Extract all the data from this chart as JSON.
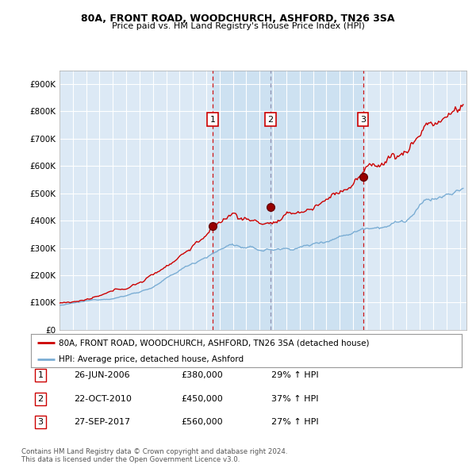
{
  "title1": "80A, FRONT ROAD, WOODCHURCH, ASHFORD, TN26 3SA",
  "title2": "Price paid vs. HM Land Registry's House Price Index (HPI)",
  "xlim_start": 1995.0,
  "xlim_end": 2025.5,
  "ylim_min": 0,
  "ylim_max": 950000,
  "yticks": [
    0,
    100000,
    200000,
    300000,
    400000,
    500000,
    600000,
    700000,
    800000,
    900000
  ],
  "ytick_labels": [
    "£0",
    "£100K",
    "£200K",
    "£300K",
    "£400K",
    "£500K",
    "£600K",
    "£700K",
    "£800K",
    "£900K"
  ],
  "sale_dates": [
    2006.484,
    2010.812,
    2017.745
  ],
  "sale_prices": [
    380000,
    450000,
    560000
  ],
  "sale_labels": [
    "1",
    "2",
    "3"
  ],
  "sale_info": [
    {
      "num": "1",
      "date": "26-JUN-2006",
      "price": "£380,000",
      "hpi": "29% ↑ HPI"
    },
    {
      "num": "2",
      "date": "22-OCT-2010",
      "price": "£450,000",
      "hpi": "37% ↑ HPI"
    },
    {
      "num": "3",
      "date": "27-SEP-2017",
      "price": "£560,000",
      "hpi": "27% ↑ HPI"
    }
  ],
  "legend_label_red": "80A, FRONT ROAD, WOODCHURCH, ASHFORD, TN26 3SA (detached house)",
  "legend_label_blue": "HPI: Average price, detached house, Ashford",
  "footnote": "Contains HM Land Registry data © Crown copyright and database right 2024.\nThis data is licensed under the Open Government Licence v3.0.",
  "bg_color": "#dce9f5",
  "grid_color": "#ffffff",
  "red_color": "#cc0000",
  "blue_color": "#7aadd4",
  "shade_color": "#c8dff0"
}
